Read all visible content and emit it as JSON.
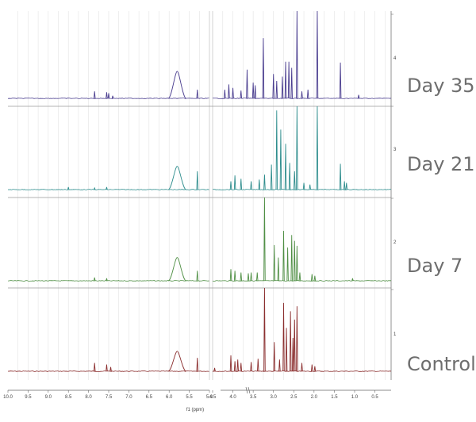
{
  "chart_data": {
    "type": "line",
    "title": "",
    "xlabel": "f1 (ppm)",
    "ylabel": "",
    "x_reversed": true,
    "grid": true,
    "axis_break": true,
    "x_segments": [
      {
        "range": [
          10.0,
          5.0
        ],
        "tick_values": [
          10.0,
          9.5,
          9.0,
          8.5,
          8.0,
          7.5,
          7.0,
          6.5,
          6.0,
          5.5,
          5.0
        ],
        "tick_labels": [
          "10.0",
          "9.5",
          "9.0",
          "8.5",
          "8.0",
          "7.5",
          "7.0",
          "6.5",
          "6.0",
          "5.5",
          "5.0"
        ]
      },
      {
        "range": [
          4.5,
          0.1
        ],
        "tick_values": [
          4.5,
          4.0,
          3.5,
          3.0,
          2.5,
          2.0,
          1.5,
          1.0,
          0.5
        ],
        "tick_labels": [
          "4.5",
          "4.0",
          "3.5",
          "3.0",
          "2.5",
          "2.0",
          "1.5",
          "1.0",
          "0.5"
        ]
      }
    ],
    "stack_ticks": [
      "1",
      "2",
      "3",
      "4"
    ],
    "series": [
      {
        "name": "Control",
        "color": "#8b2e2e",
        "peaks": [
          [
            7.85,
            0.1
          ],
          [
            7.55,
            0.08
          ],
          [
            7.45,
            0.05
          ],
          [
            5.8,
            0.24
          ],
          [
            5.3,
            0.16
          ],
          [
            4.45,
            0.04
          ],
          [
            4.05,
            0.19
          ],
          [
            3.95,
            0.12
          ],
          [
            3.88,
            0.14
          ],
          [
            3.8,
            0.1
          ],
          [
            3.55,
            0.11
          ],
          [
            3.38,
            0.15
          ],
          [
            3.22,
            1.0
          ],
          [
            2.98,
            0.35
          ],
          [
            2.85,
            0.14
          ],
          [
            2.75,
            0.82
          ],
          [
            2.68,
            0.52
          ],
          [
            2.58,
            0.72
          ],
          [
            2.52,
            0.4
          ],
          [
            2.48,
            0.62
          ],
          [
            2.42,
            0.78
          ],
          [
            2.3,
            0.1
          ],
          [
            2.05,
            0.08
          ],
          [
            1.98,
            0.06
          ]
        ]
      },
      {
        "name": "Day 7",
        "color": "#4f8f44",
        "peaks": [
          [
            7.85,
            0.04
          ],
          [
            7.55,
            0.03
          ],
          [
            5.8,
            0.28
          ],
          [
            5.3,
            0.12
          ],
          [
            4.05,
            0.14
          ],
          [
            3.95,
            0.12
          ],
          [
            3.8,
            0.1
          ],
          [
            3.62,
            0.09
          ],
          [
            3.55,
            0.1
          ],
          [
            3.4,
            0.1
          ],
          [
            3.22,
            1.0
          ],
          [
            2.98,
            0.43
          ],
          [
            2.88,
            0.28
          ],
          [
            2.75,
            0.6
          ],
          [
            2.65,
            0.4
          ],
          [
            2.55,
            0.55
          ],
          [
            2.48,
            0.48
          ],
          [
            2.42,
            0.42
          ],
          [
            2.35,
            0.1
          ],
          [
            2.05,
            0.08
          ],
          [
            1.98,
            0.06
          ],
          [
            1.05,
            0.03
          ]
        ]
      },
      {
        "name": "Day 21",
        "color": "#2e8d8d",
        "peaks": [
          [
            8.5,
            0.03
          ],
          [
            7.85,
            0.02
          ],
          [
            7.55,
            0.03
          ],
          [
            5.8,
            0.28
          ],
          [
            5.3,
            0.22
          ],
          [
            4.05,
            0.1
          ],
          [
            3.95,
            0.17
          ],
          [
            3.8,
            0.13
          ],
          [
            3.55,
            0.1
          ],
          [
            3.35,
            0.12
          ],
          [
            3.22,
            0.18
          ],
          [
            3.05,
            0.3
          ],
          [
            2.92,
            0.95
          ],
          [
            2.82,
            0.72
          ],
          [
            2.7,
            0.55
          ],
          [
            2.6,
            0.32
          ],
          [
            2.48,
            0.22
          ],
          [
            2.42,
            1.0
          ],
          [
            2.25,
            0.08
          ],
          [
            2.1,
            0.06
          ],
          [
            1.92,
            1.0
          ],
          [
            1.35,
            0.31
          ],
          [
            1.25,
            0.1
          ],
          [
            1.2,
            0.08
          ]
        ]
      },
      {
        "name": "Day 35",
        "color": "#4a3d8f",
        "peaks": [
          [
            7.85,
            0.08
          ],
          [
            7.55,
            0.07
          ],
          [
            7.5,
            0.06
          ],
          [
            7.4,
            0.03
          ],
          [
            5.8,
            0.31
          ],
          [
            5.3,
            0.1
          ],
          [
            4.2,
            0.1
          ],
          [
            4.1,
            0.16
          ],
          [
            4.0,
            0.12
          ],
          [
            3.8,
            0.09
          ],
          [
            3.65,
            0.33
          ],
          [
            3.5,
            0.18
          ],
          [
            3.45,
            0.15
          ],
          [
            3.25,
            0.69
          ],
          [
            3.0,
            0.28
          ],
          [
            2.92,
            0.2
          ],
          [
            2.78,
            0.25
          ],
          [
            2.7,
            0.42
          ],
          [
            2.62,
            0.42
          ],
          [
            2.55,
            0.35
          ],
          [
            2.42,
            1.0
          ],
          [
            2.3,
            0.08
          ],
          [
            2.15,
            0.1
          ],
          [
            1.92,
            1.0
          ],
          [
            1.35,
            0.41
          ],
          [
            0.9,
            0.04
          ]
        ]
      }
    ]
  }
}
